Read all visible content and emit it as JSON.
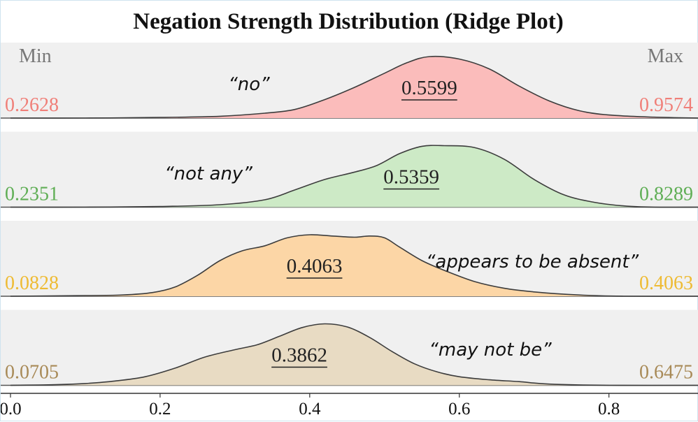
{
  "chart_data": {
    "type": "ridge",
    "title": "Negation Strength Distribution (Ridge Plot)",
    "min_header": "Min",
    "max_header": "Max",
    "xlim": [
      0.0,
      0.92
    ],
    "x_ticks": [
      "0.0",
      "0.2",
      "0.4",
      "0.6",
      "0.8"
    ],
    "x_tick_values": [
      0.0,
      0.2,
      0.4,
      0.6,
      0.8
    ],
    "series": [
      {
        "phrase": "“no”",
        "min": "0.2628",
        "max": "0.9574",
        "median": "0.5599",
        "median_value": 0.5599,
        "fill": "#fbbcbb",
        "label_color": "#f07f78",
        "density": [
          [
            0.0,
            0.0
          ],
          [
            0.1,
            0.0
          ],
          [
            0.2,
            0.01
          ],
          [
            0.28,
            0.03
          ],
          [
            0.34,
            0.08
          ],
          [
            0.38,
            0.14
          ],
          [
            0.42,
            0.3
          ],
          [
            0.46,
            0.5
          ],
          [
            0.5,
            0.73
          ],
          [
            0.53,
            0.9
          ],
          [
            0.56,
            1.0
          ],
          [
            0.6,
            0.96
          ],
          [
            0.64,
            0.8
          ],
          [
            0.68,
            0.52
          ],
          [
            0.72,
            0.28
          ],
          [
            0.76,
            0.12
          ],
          [
            0.8,
            0.05
          ],
          [
            0.86,
            0.015
          ],
          [
            0.92,
            0.0
          ]
        ]
      },
      {
        "phrase": "“not any”",
        "min": "0.2351",
        "max": "0.8289",
        "median": "0.5359",
        "median_value": 0.5359,
        "fill": "#cdeac6",
        "label_color": "#5fae55",
        "density": [
          [
            0.0,
            0.0
          ],
          [
            0.1,
            0.0
          ],
          [
            0.2,
            0.01
          ],
          [
            0.28,
            0.04
          ],
          [
            0.34,
            0.12
          ],
          [
            0.38,
            0.28
          ],
          [
            0.42,
            0.45
          ],
          [
            0.46,
            0.57
          ],
          [
            0.49,
            0.68
          ],
          [
            0.52,
            0.87
          ],
          [
            0.55,
            0.99
          ],
          [
            0.58,
            1.0
          ],
          [
            0.62,
            0.97
          ],
          [
            0.66,
            0.78
          ],
          [
            0.7,
            0.45
          ],
          [
            0.74,
            0.2
          ],
          [
            0.78,
            0.08
          ],
          [
            0.82,
            0.02
          ],
          [
            0.86,
            0.0
          ],
          [
            0.92,
            0.0
          ]
        ]
      },
      {
        "phrase": "“appears to be absent”",
        "min": "0.0828",
        "max": "0.4063",
        "median": "0.4063",
        "median_value": 0.4063,
        "fill": "#fcd6a6",
        "label_color": "#eebb33",
        "density": [
          [
            0.0,
            0.0
          ],
          [
            0.1,
            0.01
          ],
          [
            0.15,
            0.02
          ],
          [
            0.19,
            0.06
          ],
          [
            0.22,
            0.15
          ],
          [
            0.25,
            0.34
          ],
          [
            0.28,
            0.58
          ],
          [
            0.31,
            0.74
          ],
          [
            0.34,
            0.82
          ],
          [
            0.37,
            0.95
          ],
          [
            0.4,
            1.0
          ],
          [
            0.43,
            0.98
          ],
          [
            0.46,
            0.96
          ],
          [
            0.48,
            0.98
          ],
          [
            0.5,
            0.95
          ],
          [
            0.52,
            0.8
          ],
          [
            0.55,
            0.58
          ],
          [
            0.58,
            0.42
          ],
          [
            0.62,
            0.24
          ],
          [
            0.66,
            0.13
          ],
          [
            0.7,
            0.07
          ],
          [
            0.76,
            0.02
          ],
          [
            0.82,
            0.0
          ],
          [
            0.92,
            0.0
          ]
        ]
      },
      {
        "phrase": "“may not be”",
        "min": "0.0705",
        "max": "0.6475",
        "median": "0.3862",
        "median_value": 0.3862,
        "fill": "#e8dbc3",
        "label_color": "#a88a57",
        "density": [
          [
            0.0,
            0.0
          ],
          [
            0.06,
            0.01
          ],
          [
            0.1,
            0.03
          ],
          [
            0.14,
            0.07
          ],
          [
            0.18,
            0.14
          ],
          [
            0.22,
            0.28
          ],
          [
            0.26,
            0.46
          ],
          [
            0.3,
            0.58
          ],
          [
            0.33,
            0.66
          ],
          [
            0.36,
            0.8
          ],
          [
            0.39,
            0.94
          ],
          [
            0.42,
            1.0
          ],
          [
            0.45,
            0.95
          ],
          [
            0.48,
            0.78
          ],
          [
            0.51,
            0.55
          ],
          [
            0.54,
            0.35
          ],
          [
            0.57,
            0.22
          ],
          [
            0.6,
            0.14
          ],
          [
            0.64,
            0.09
          ],
          [
            0.68,
            0.06
          ],
          [
            0.72,
            0.02
          ],
          [
            0.8,
            0.0
          ],
          [
            0.92,
            0.0
          ]
        ]
      }
    ]
  }
}
